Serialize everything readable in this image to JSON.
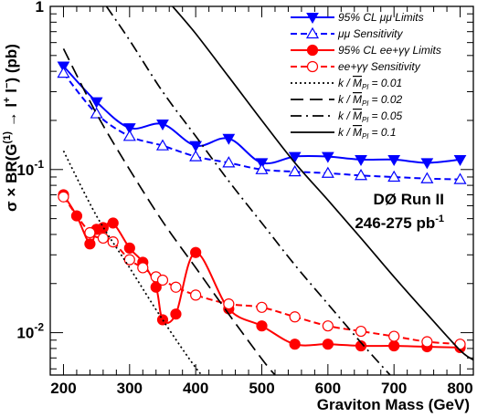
{
  "chart_data": {
    "type": "line",
    "xlabel": "Graviton Mass (GeV)",
    "ylabel_parts": [
      "σ × BR(G",
      "(1)",
      " → l",
      "+",
      " l",
      "−",
      ") (pb)"
    ],
    "xlim": [
      180,
      820
    ],
    "ylim": [
      0.0055,
      1.0
    ],
    "log_y": true,
    "x_ticks": [
      200,
      300,
      400,
      500,
      600,
      700,
      800
    ],
    "x_tick_labels": [
      "200",
      "300",
      "400",
      "500",
      "600",
      "700",
      "800"
    ],
    "y_ticks": [
      {
        "value": 0.01,
        "base": "10",
        "exp": "-2"
      },
      {
        "value": 0.1,
        "base": "10",
        "exp": "-1"
      },
      {
        "value": 1.0,
        "base": "1",
        "exp": ""
      }
    ],
    "experiment_label": {
      "line1": "DØ Run II",
      "line2_base": "246-275 pb",
      "line2_exp": "-1"
    },
    "series": [
      {
        "name": "95% CL μμ Limits",
        "color": "#0000ff",
        "line": "solid",
        "marker": "triangle-down-filled",
        "x": [
          200,
          250,
          300,
          350,
          400,
          450,
          500,
          550,
          600,
          650,
          700,
          750,
          800
        ],
        "y": [
          0.43,
          0.26,
          0.18,
          0.19,
          0.14,
          0.155,
          0.11,
          0.12,
          0.12,
          0.115,
          0.115,
          0.11,
          0.115
        ]
      },
      {
        "name": "μμ Sensitivity",
        "color": "#0000ff",
        "line": "dashed",
        "marker": "triangle-up-open",
        "x": [
          200,
          250,
          300,
          350,
          400,
          450,
          500,
          550,
          600,
          650,
          700,
          750,
          800
        ],
        "y": [
          0.39,
          0.22,
          0.16,
          0.14,
          0.12,
          0.11,
          0.1,
          0.097,
          0.095,
          0.092,
          0.09,
          0.088,
          0.087
        ]
      },
      {
        "name": "95% CL ee+γγ Limits",
        "color": "#ff0000",
        "line": "solid",
        "marker": "circle-filled",
        "x": [
          200,
          220,
          240,
          250,
          260,
          275,
          300,
          320,
          340,
          350,
          370,
          400,
          450,
          500,
          550,
          600,
          650,
          700,
          750,
          800
        ],
        "y": [
          0.07,
          0.052,
          0.035,
          0.043,
          0.044,
          0.047,
          0.033,
          0.027,
          0.019,
          0.012,
          0.013,
          0.031,
          0.014,
          0.011,
          0.0085,
          0.0085,
          0.0083,
          0.0083,
          0.0082,
          0.0081
        ]
      },
      {
        "name": "ee+γγ Sensitivity",
        "color": "#ff0000",
        "line": "dashed",
        "marker": "circle-open",
        "x": [
          200,
          240,
          260,
          275,
          300,
          320,
          340,
          350,
          370,
          400,
          450,
          500,
          550,
          600,
          650,
          700,
          750,
          800
        ],
        "y": [
          0.068,
          0.041,
          0.038,
          0.036,
          0.028,
          0.025,
          0.022,
          0.021,
          0.019,
          0.017,
          0.015,
          0.0143,
          0.0125,
          0.011,
          0.0102,
          0.0095,
          0.0088,
          0.0085
        ]
      },
      {
        "name": "k / M_Pl = 0.01",
        "label_parts": {
          "pre": "k / ",
          "base": "M",
          "sub": "Pl",
          "post": " = 0.01"
        },
        "color": "#000000",
        "line": "dotted",
        "marker": "none",
        "x": [
          200,
          250,
          300,
          350,
          400,
          420
        ],
        "y": [
          0.13,
          0.052,
          0.025,
          0.012,
          0.0061,
          0.005
        ]
      },
      {
        "name": "k / M_Pl = 0.02",
        "label_parts": {
          "pre": "k / ",
          "base": "M",
          "sub": "Pl",
          "post": " = 0.02"
        },
        "color": "#000000",
        "line": "longdash",
        "marker": "none",
        "x": [
          200,
          250,
          300,
          350,
          400,
          450,
          500,
          520
        ],
        "y": [
          0.55,
          0.22,
          0.1,
          0.048,
          0.025,
          0.013,
          0.0069,
          0.0055
        ]
      },
      {
        "name": "k / M_Pl = 0.05",
        "label_parts": {
          "pre": "k / ",
          "base": "M",
          "sub": "Pl",
          "post": " = 0.05"
        },
        "color": "#000000",
        "line": "dashdot",
        "marker": "none",
        "x": [
          265,
          300,
          350,
          400,
          450,
          500,
          550,
          600,
          650,
          700,
          710
        ],
        "y": [
          1.0,
          0.62,
          0.3,
          0.16,
          0.085,
          0.047,
          0.026,
          0.015,
          0.0087,
          0.0052,
          0.005
        ]
      },
      {
        "name": "k / M_Pl = 0.1",
        "label_parts": {
          "pre": "k / ",
          "base": "M",
          "sub": "Pl",
          "post": " = 0.1"
        },
        "color": "#000000",
        "line": "solid",
        "marker": "none",
        "x": [
          365,
          400,
          450,
          500,
          550,
          600,
          650,
          700,
          750,
          800,
          820
        ],
        "y": [
          1.0,
          0.68,
          0.37,
          0.2,
          0.11,
          0.065,
          0.038,
          0.022,
          0.013,
          0.0078,
          0.0068
        ]
      }
    ]
  }
}
